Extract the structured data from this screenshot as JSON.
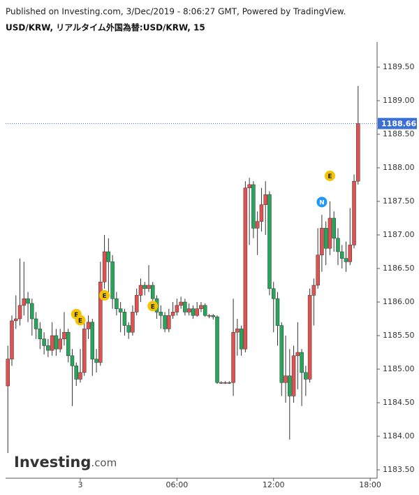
{
  "header": {
    "published": "Published on Investing.com, 3/Dec/2019 - 8:06:27 GMT, Powered by TradingView.",
    "symbol": "USD/KRW, リアルタイム外国為替:USD/KRW, 15"
  },
  "logo": {
    "name": "Investing",
    "suffix": ".com"
  },
  "chart_data": {
    "type": "candlestick",
    "up_color": "#e0524f",
    "down_color": "#26a65b",
    "x": [
      -4.5,
      -4.25,
      -4,
      -3.75,
      -3.5,
      -3.25,
      -3,
      -2.75,
      -2.5,
      -2.25,
      -2,
      -1.75,
      -1.5,
      -1.25,
      -1,
      -0.75,
      -0.5,
      -0.25,
      0,
      0.25,
      0.5,
      0.75,
      1,
      1.25,
      1.5,
      1.75,
      2,
      2.25,
      2.5,
      2.75,
      3,
      3.25,
      3.5,
      3.75,
      4,
      4.25,
      4.5,
      4.75,
      5,
      5.25,
      5.5,
      5.75,
      6,
      6.25,
      6.5,
      6.75,
      7,
      7.25,
      7.5,
      7.75,
      8,
      8.25,
      8.5,
      8.75,
      9,
      9.25,
      9.5,
      9.75,
      10,
      10.25,
      10.5,
      10.75,
      11,
      11.25,
      11.5,
      11.75,
      12,
      12.25,
      12.5,
      12.75,
      13,
      13.25,
      13.5,
      13.75,
      14,
      14.25,
      14.5,
      14.75,
      15,
      15.25,
      15.5,
      15.75,
      16,
      16.25,
      16.5,
      16.75,
      17,
      17.25
    ],
    "open": [
      1184.75,
      1185.15,
      1185.72,
      1185.75,
      1185.95,
      1186.05,
      1185.98,
      1185.75,
      1185.6,
      1185.45,
      1185.35,
      1185.28,
      1185.5,
      1185.3,
      1185.45,
      1185.55,
      1185.2,
      1185.05,
      1184.85,
      1184.95,
      1185.6,
      1185.7,
      1185.15,
      1185.1,
      1186.3,
      1186.75,
      1186.6,
      1186.05,
      1185.9,
      1185.85,
      1185.65,
      1185.55,
      1185.85,
      1186.1,
      1186.25,
      1186.2,
      1186.25,
      1186.05,
      1185.85,
      1185.8,
      1185.6,
      1185.8,
      1185.85,
      1185.95,
      1186.0,
      1185.85,
      1185.9,
      1185.8,
      1185.9,
      1185.95,
      1185.8,
      1185.8,
      1185.78,
      1184.8,
      1184.8,
      1184.8,
      1184.8,
      1185.55,
      1185.6,
      1185.3,
      1187.7,
      1187.75,
      1187.1,
      1187.2,
      1187.45,
      1187.6,
      1186.2,
      1186.05,
      1185.65,
      1184.8,
      1184.9,
      1184.6,
      1185.2,
      1185.25,
      1184.95,
      1184.85,
      1186.1,
      1186.25,
      1186.7,
      1187.1,
      1186.8,
      1187.25,
      1186.95,
      1186.75,
      1186.65,
      1186.6,
      1186.85,
      1187.8
    ],
    "high": [
      1185.35,
      1185.8,
      1186.1,
      1186.65,
      1186.6,
      1186.15,
      1186.05,
      1185.85,
      1185.7,
      1185.55,
      1185.45,
      1185.7,
      1185.6,
      1185.6,
      1185.85,
      1185.6,
      1185.3,
      1185.1,
      1185.3,
      1185.75,
      1185.8,
      1185.75,
      1185.3,
      1186.6,
      1187.0,
      1186.95,
      1186.7,
      1186.15,
      1186.0,
      1185.9,
      1185.7,
      1185.95,
      1186.2,
      1186.35,
      1186.3,
      1186.55,
      1186.3,
      1186.1,
      1185.95,
      1185.85,
      1185.9,
      1186.0,
      1186.05,
      1186.08,
      1186.05,
      1185.98,
      1185.95,
      1186.0,
      1186.0,
      1185.98,
      1185.82,
      1185.82,
      1185.8,
      1184.82,
      1184.82,
      1184.82,
      1186.05,
      1185.75,
      1185.65,
      1187.8,
      1187.85,
      1187.8,
      1187.35,
      1187.7,
      1187.8,
      1187.65,
      1186.3,
      1186.15,
      1185.7,
      1185.5,
      1185.3,
      1185.35,
      1185.7,
      1185.3,
      1185.05,
      1186.2,
      1186.35,
      1187.1,
      1187.3,
      1187.2,
      1187.5,
      1187.35,
      1187.1,
      1186.85,
      1186.9,
      1187.4,
      1187.9,
      1189.22
    ],
    "low": [
      1183.75,
      1185.05,
      1185.6,
      1185.65,
      1185.8,
      1185.7,
      1185.5,
      1185.45,
      1185.3,
      1185.22,
      1185.18,
      1185.2,
      1185.2,
      1185.25,
      1185.35,
      1185.1,
      1184.45,
      1184.75,
      1184.8,
      1184.9,
      1185.45,
      1184.9,
      1184.95,
      1185.05,
      1186.2,
      1186.1,
      1185.9,
      1185.8,
      1185.55,
      1185.5,
      1185.45,
      1185.5,
      1185.8,
      1186.0,
      1186.1,
      1186.15,
      1185.95,
      1185.75,
      1185.6,
      1185.55,
      1185.55,
      1185.75,
      1185.8,
      1185.9,
      1185.8,
      1185.8,
      1185.75,
      1185.78,
      1185.85,
      1185.78,
      1185.76,
      1185.74,
      1184.78,
      1184.78,
      1184.78,
      1184.78,
      1184.6,
      1185.2,
      1185.2,
      1185.25,
      1186.85,
      1186.95,
      1186.7,
      1187.05,
      1187.0,
      1186.1,
      1185.55,
      1185.35,
      1184.6,
      1184.5,
      1183.95,
      1184.5,
      1184.7,
      1184.45,
      1184.6,
      1184.8,
      1185.65,
      1186.2,
      1186.45,
      1186.55,
      1186.7,
      1186.75,
      1186.55,
      1186.5,
      1186.45,
      1186.55,
      1186.8,
      1187.75
    ],
    "close": [
      1185.15,
      1185.72,
      1185.75,
      1185.95,
      1186.05,
      1185.98,
      1185.75,
      1185.6,
      1185.45,
      1185.35,
      1185.28,
      1185.5,
      1185.3,
      1185.45,
      1185.55,
      1185.2,
      1185.05,
      1184.85,
      1184.95,
      1185.6,
      1185.7,
      1185.15,
      1185.1,
      1186.3,
      1186.75,
      1186.6,
      1186.05,
      1185.9,
      1185.85,
      1185.65,
      1185.55,
      1185.85,
      1186.1,
      1186.25,
      1186.2,
      1186.25,
      1186.05,
      1185.85,
      1185.8,
      1185.6,
      1185.8,
      1185.85,
      1185.95,
      1186.0,
      1185.85,
      1185.9,
      1185.8,
      1185.9,
      1185.95,
      1185.8,
      1185.8,
      1185.78,
      1184.8,
      1184.8,
      1184.8,
      1184.8,
      1185.55,
      1185.6,
      1185.3,
      1187.7,
      1187.75,
      1187.1,
      1187.2,
      1187.45,
      1187.6,
      1186.2,
      1186.05,
      1185.65,
      1184.8,
      1184.9,
      1184.6,
      1185.2,
      1185.25,
      1184.95,
      1184.85,
      1186.1,
      1186.25,
      1186.7,
      1187.1,
      1186.8,
      1187.25,
      1186.95,
      1186.75,
      1186.65,
      1186.6,
      1186.85,
      1187.8,
      1188.66
    ],
    "last_price": 1188.66,
    "last_price_label": "1188.66",
    "last_price_color": "#3a6fd8",
    "events": [
      {
        "label": "E",
        "x": -0.25,
        "y": 1185.82
      },
      {
        "label": "E",
        "x": 0,
        "y": 1185.73
      },
      {
        "label": "E",
        "x": 1.5,
        "y": 1186.1
      },
      {
        "label": "E",
        "x": 4.5,
        "y": 1185.94
      },
      {
        "label": "N",
        "x": 15,
        "y": 1187.49
      },
      {
        "label": "E",
        "x": 15.5,
        "y": 1187.88
      }
    ],
    "xlim": [
      -4.64,
      18.43
    ],
    "xticks": [
      {
        "value": 0,
        "label": "3"
      },
      {
        "value": 6,
        "label": "06:00"
      },
      {
        "value": 12,
        "label": "12:00"
      },
      {
        "value": 18,
        "label": "18:00"
      }
    ],
    "ylim": [
      1183.375,
      1189.875
    ],
    "yticks": [
      {
        "value": 1183.5,
        "label": "1183.50"
      },
      {
        "value": 1184,
        "label": "1184.00"
      },
      {
        "value": 1184.5,
        "label": "1184.50"
      },
      {
        "value": 1185,
        "label": "1185.00"
      },
      {
        "value": 1185.5,
        "label": "1185.50"
      },
      {
        "value": 1186,
        "label": "1186.00"
      },
      {
        "value": 1186.5,
        "label": "1186.50"
      },
      {
        "value": 1187,
        "label": "1187.00"
      },
      {
        "value": 1187.5,
        "label": "1187.50"
      },
      {
        "value": 1188,
        "label": "1188.00"
      },
      {
        "value": 1188.5,
        "label": "1188.50"
      },
      {
        "value": 1189,
        "label": "1189.00"
      },
      {
        "value": 1189.5,
        "label": "1189.50"
      }
    ]
  }
}
